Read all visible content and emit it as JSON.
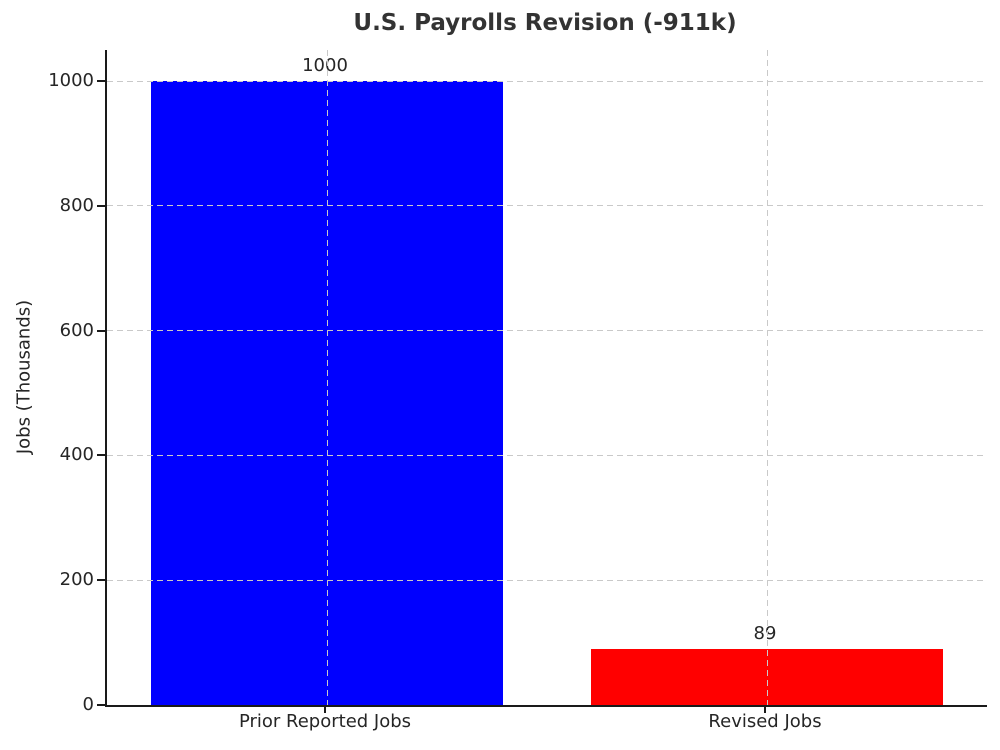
{
  "title": "U.S. Payrolls Revision (-911k)",
  "chart_data": {
    "type": "bar",
    "title": "U.S. Payrolls Revision (-911k)",
    "categories": [
      "Prior Reported Jobs",
      "Revised Jobs"
    ],
    "values": [
      1000,
      89
    ],
    "value_labels": [
      "1000",
      "89"
    ],
    "bar_colors": [
      "#0000ff",
      "#ff0000"
    ],
    "xlabel": "",
    "ylabel": "Jobs (Thousands)",
    "ylim": [
      0,
      1050
    ],
    "yticks": [
      0,
      200,
      400,
      600,
      800,
      1000
    ],
    "bar_width_frac": 0.8,
    "grid": "dashed-both-axes",
    "grid_color": "#c9c9c9",
    "spine_color": "#1a1a1a",
    "text_color": "#262626",
    "background_color": "#ffffff",
    "legend": "none"
  }
}
